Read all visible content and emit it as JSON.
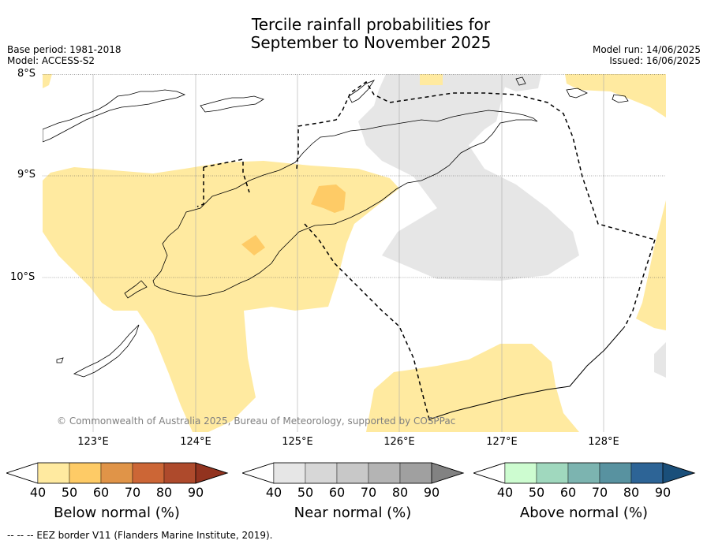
{
  "title_line1": "Tercile rainfall probabilities for",
  "title_line2": "September to November 2025",
  "meta": {
    "base_period": "Base period: 1981-2018",
    "model": "Model: ACCESS-S2",
    "model_run": "Model run: 14/06/2025",
    "issued": "Issued: 16/06/2025"
  },
  "lat_labels": [
    "8°S",
    "9°S",
    "10°S"
  ],
  "lon_labels": [
    "123°E",
    "124°E",
    "125°E",
    "126°E",
    "127°E",
    "128°E"
  ],
  "copyright": "© Commonwealth of Australia 2025, Bureau of Meteorology, supported by COSPPac",
  "colorbars": [
    {
      "title": "Below normal (%)",
      "ticks": [
        "40",
        "50",
        "60",
        "70",
        "80",
        "90"
      ],
      "colors": [
        "#ffffff",
        "#ffeaa0",
        "#fecb66",
        "#e09448",
        "#cc6636",
        "#ae4a2c",
        "#92331f"
      ]
    },
    {
      "title": "Near normal (%)",
      "ticks": [
        "40",
        "50",
        "60",
        "70",
        "80",
        "90"
      ],
      "colors": [
        "#ffffff",
        "#e6e6e6",
        "#d7d7d7",
        "#c8c8c8",
        "#b4b4b4",
        "#a0a0a0",
        "#828282"
      ]
    },
    {
      "title": "Above normal (%)",
      "ticks": [
        "40",
        "50",
        "60",
        "70",
        "80",
        "90"
      ],
      "colors": [
        "#ffffff",
        "#cdfcd0",
        "#a0d8be",
        "#7cb4b0",
        "#5892a0",
        "#2d6496",
        "#1a4f7a"
      ]
    }
  ],
  "footer": "--  --  -- EEZ border V11 (Flanders Marine Institute, 2019).",
  "map_colors": {
    "below_50": "#ffeaa0",
    "below_60": "#fecb66",
    "near_50": "#e6e6e6"
  }
}
